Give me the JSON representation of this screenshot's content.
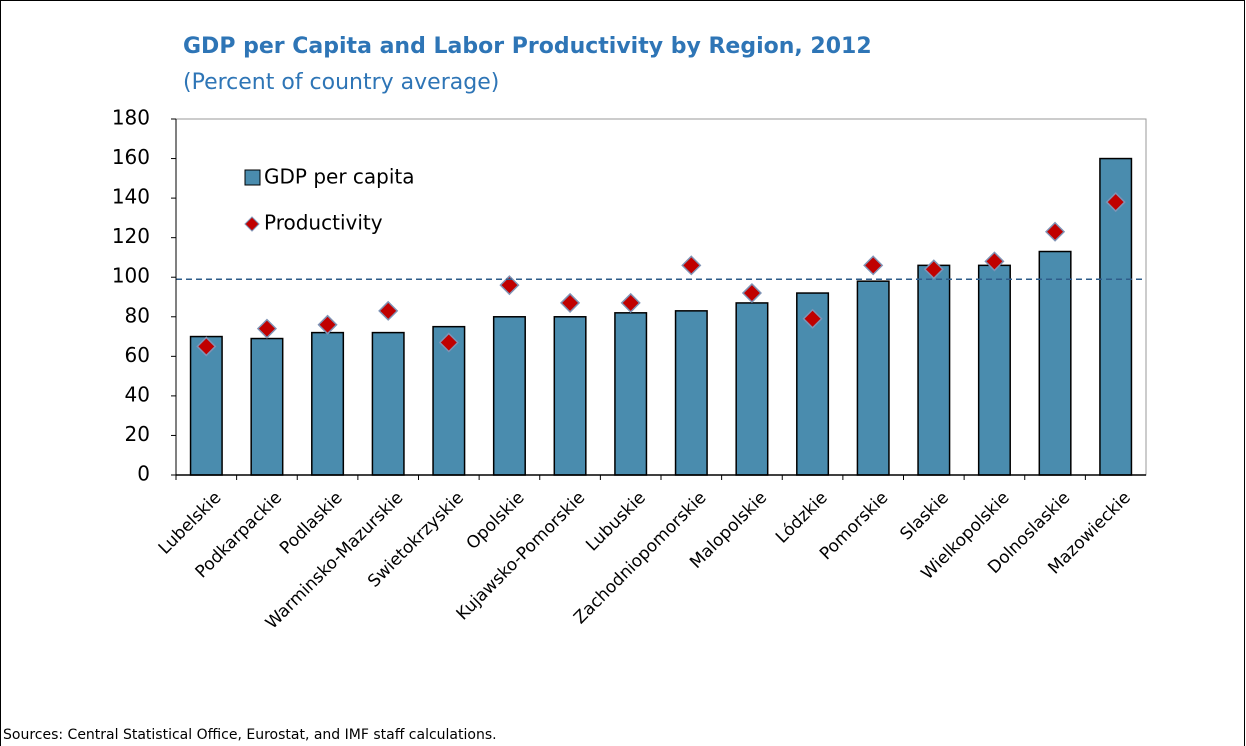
{
  "chart_data": {
    "type": "bar",
    "title": "GDP per Capita and Labor Productivity by Region, 2012",
    "subtitle": "(Percent of country average)",
    "categories": [
      "Lubelskie",
      "Podkarpackie",
      "Podlaskie",
      "Warminsko-Mazurskie",
      "Swietokrzyskie",
      "Opolskie",
      "Kujawsko-Pomorskie",
      "Lubuskie",
      "Zachodniopomorskie",
      "Malopolskie",
      "Lódzkie",
      "Pomorskie",
      "Slaskie",
      "Wielkopolskie",
      "Dolnoslaskie",
      "Mazowieckie"
    ],
    "series": [
      {
        "name": "GDP per capita",
        "type": "bar",
        "color": "#4a8cae",
        "values": [
          70,
          69,
          72,
          72,
          75,
          80,
          80,
          82,
          83,
          87,
          92,
          98,
          106,
          106,
          113,
          160
        ]
      },
      {
        "name": "Productivity",
        "type": "scatter",
        "color": "#c00000",
        "values": [
          65,
          74,
          76,
          83,
          67,
          96,
          87,
          87,
          106,
          92,
          79,
          106,
          104,
          108,
          123,
          138
        ]
      }
    ],
    "reference_line": 99,
    "ylim": [
      0,
      180
    ],
    "yticks": [
      0,
      20,
      40,
      60,
      80,
      100,
      120,
      140,
      160,
      180
    ],
    "legend": "upper left",
    "source": "Sources: Central Statistical Office, Eurostat, and IMF staff calculations."
  }
}
